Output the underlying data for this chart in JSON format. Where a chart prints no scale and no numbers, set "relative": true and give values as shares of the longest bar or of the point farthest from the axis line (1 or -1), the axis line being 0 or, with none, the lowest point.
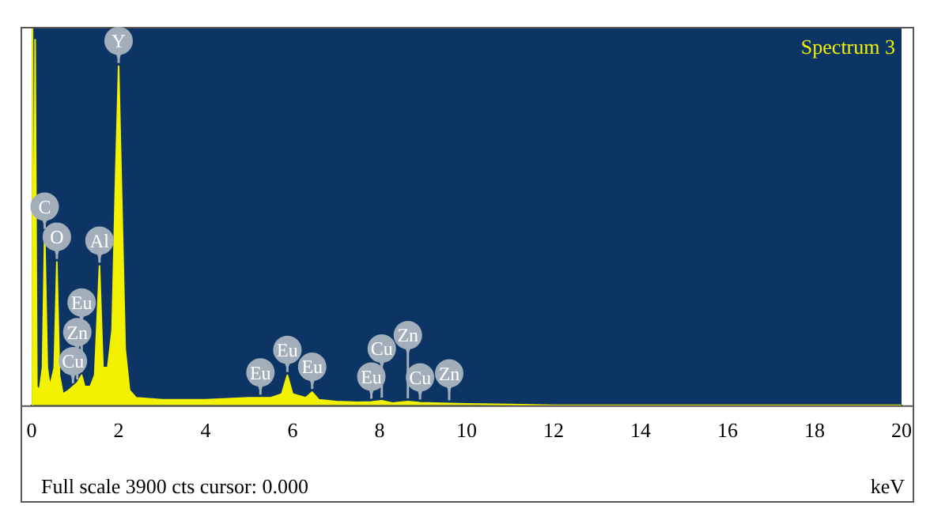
{
  "chart_data": {
    "type": "area",
    "title": "Spectrum 3",
    "xlabel": "keV",
    "relative": true,
    "xlim": [
      0,
      20
    ],
    "xticks": [
      0,
      2,
      4,
      6,
      8,
      10,
      12,
      14,
      16,
      18,
      20
    ],
    "grid": false,
    "legend": false,
    "series": [
      {
        "color": "#f2f200",
        "x": [
          0,
          0.02,
          0.05,
          0.08,
          0.12,
          0.18,
          0.25,
          0.3,
          0.36,
          0.42,
          0.52,
          0.58,
          0.64,
          0.72,
          0.85,
          0.95,
          1.05,
          1.15,
          1.22,
          1.35,
          1.45,
          1.56,
          1.64,
          1.75,
          1.85,
          1.93,
          2.0,
          2.07,
          2.15,
          2.25,
          2.4,
          3,
          4,
          5,
          5.26,
          5.5,
          5.75,
          5.88,
          6.0,
          6.3,
          6.45,
          6.6,
          7,
          7.5,
          7.81,
          8.05,
          8.3,
          8.65,
          8.93,
          9.6,
          10,
          11,
          12,
          20
        ],
        "values": [
          0,
          1.0,
          0.05,
          0.97,
          0.05,
          0.04,
          0.1,
          0.46,
          0.1,
          0.05,
          0.1,
          0.38,
          0.08,
          0.03,
          0.04,
          0.05,
          0.06,
          0.08,
          0.05,
          0.05,
          0.08,
          0.37,
          0.1,
          0.1,
          0.2,
          0.6,
          0.9,
          0.55,
          0.15,
          0.04,
          0.02,
          0.015,
          0.015,
          0.02,
          0.02,
          0.02,
          0.03,
          0.08,
          0.03,
          0.02,
          0.035,
          0.015,
          0.01,
          0.008,
          0.009,
          0.012,
          0.006,
          0.01,
          0.007,
          0.005,
          0.004,
          0.002,
          0,
          0
        ]
      }
    ],
    "annotations": [
      {
        "text": "Y",
        "x": 2.0,
        "y": 0.9
      },
      {
        "text": "C",
        "x": 0.3,
        "y": 0.46
      },
      {
        "text": "O",
        "x": 0.58,
        "y": 0.38
      },
      {
        "text": "Al",
        "x": 1.56,
        "y": 0.37
      },
      {
        "text": "Cu",
        "x": 0.95,
        "y": 0.05
      },
      {
        "text": "Zn",
        "x": 1.05,
        "y": 0.06
      },
      {
        "text": "Eu",
        "x": 1.15,
        "y": 0.08
      },
      {
        "text": "Eu",
        "x": 5.26,
        "y": 0.02
      },
      {
        "text": "Eu",
        "x": 6.45,
        "y": 0.035
      },
      {
        "text": "Eu",
        "x": 5.88,
        "y": 0.08
      },
      {
        "text": "Eu",
        "x": 7.81,
        "y": 0.009
      },
      {
        "text": "Cu",
        "x": 8.93,
        "y": 0.007
      },
      {
        "text": "Cu",
        "x": 8.05,
        "y": 0.012
      },
      {
        "text": "Zn",
        "x": 8.65,
        "y": 0.01
      },
      {
        "text": "Zn",
        "x": 9.6,
        "y": 0.005
      },
      "Full scale 3900 cts cursor: 0.000"
    ]
  }
}
